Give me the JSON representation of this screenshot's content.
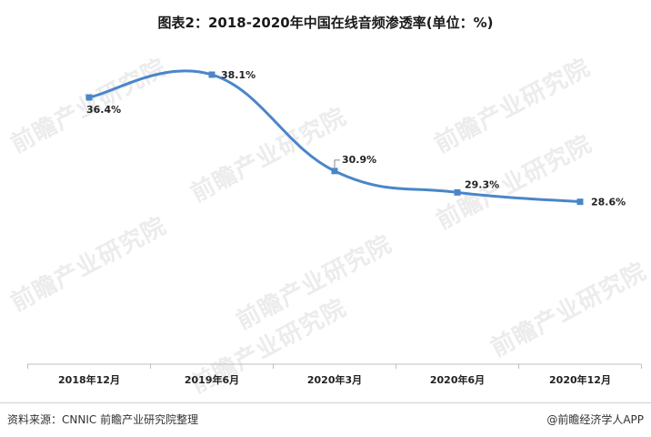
{
  "title": "图表2：2018-2020年中国在线音频渗透率(单位：%)",
  "source": "资料来源：CNNIC 前瞻产业研究院整理",
  "brand": "@前瞻经济学人APP",
  "watermark": "前瞻产业研究院",
  "colors": {
    "line": "#4a86c8",
    "axis": "#bfbfbf",
    "text": "#222222"
  },
  "chart_data": {
    "type": "line",
    "categories": [
      "2018年12月",
      "2019年6月",
      "2020年3月",
      "2020年6月",
      "2020年12月"
    ],
    "series": [
      {
        "values": [
          36.4,
          38.1,
          30.9,
          29.3,
          28.6
        ]
      }
    ],
    "data_labels": [
      "36.4%",
      "38.1%",
      "30.9%",
      "29.3%",
      "28.6%"
    ],
    "smooth": true,
    "grid": false,
    "legend": "none"
  }
}
